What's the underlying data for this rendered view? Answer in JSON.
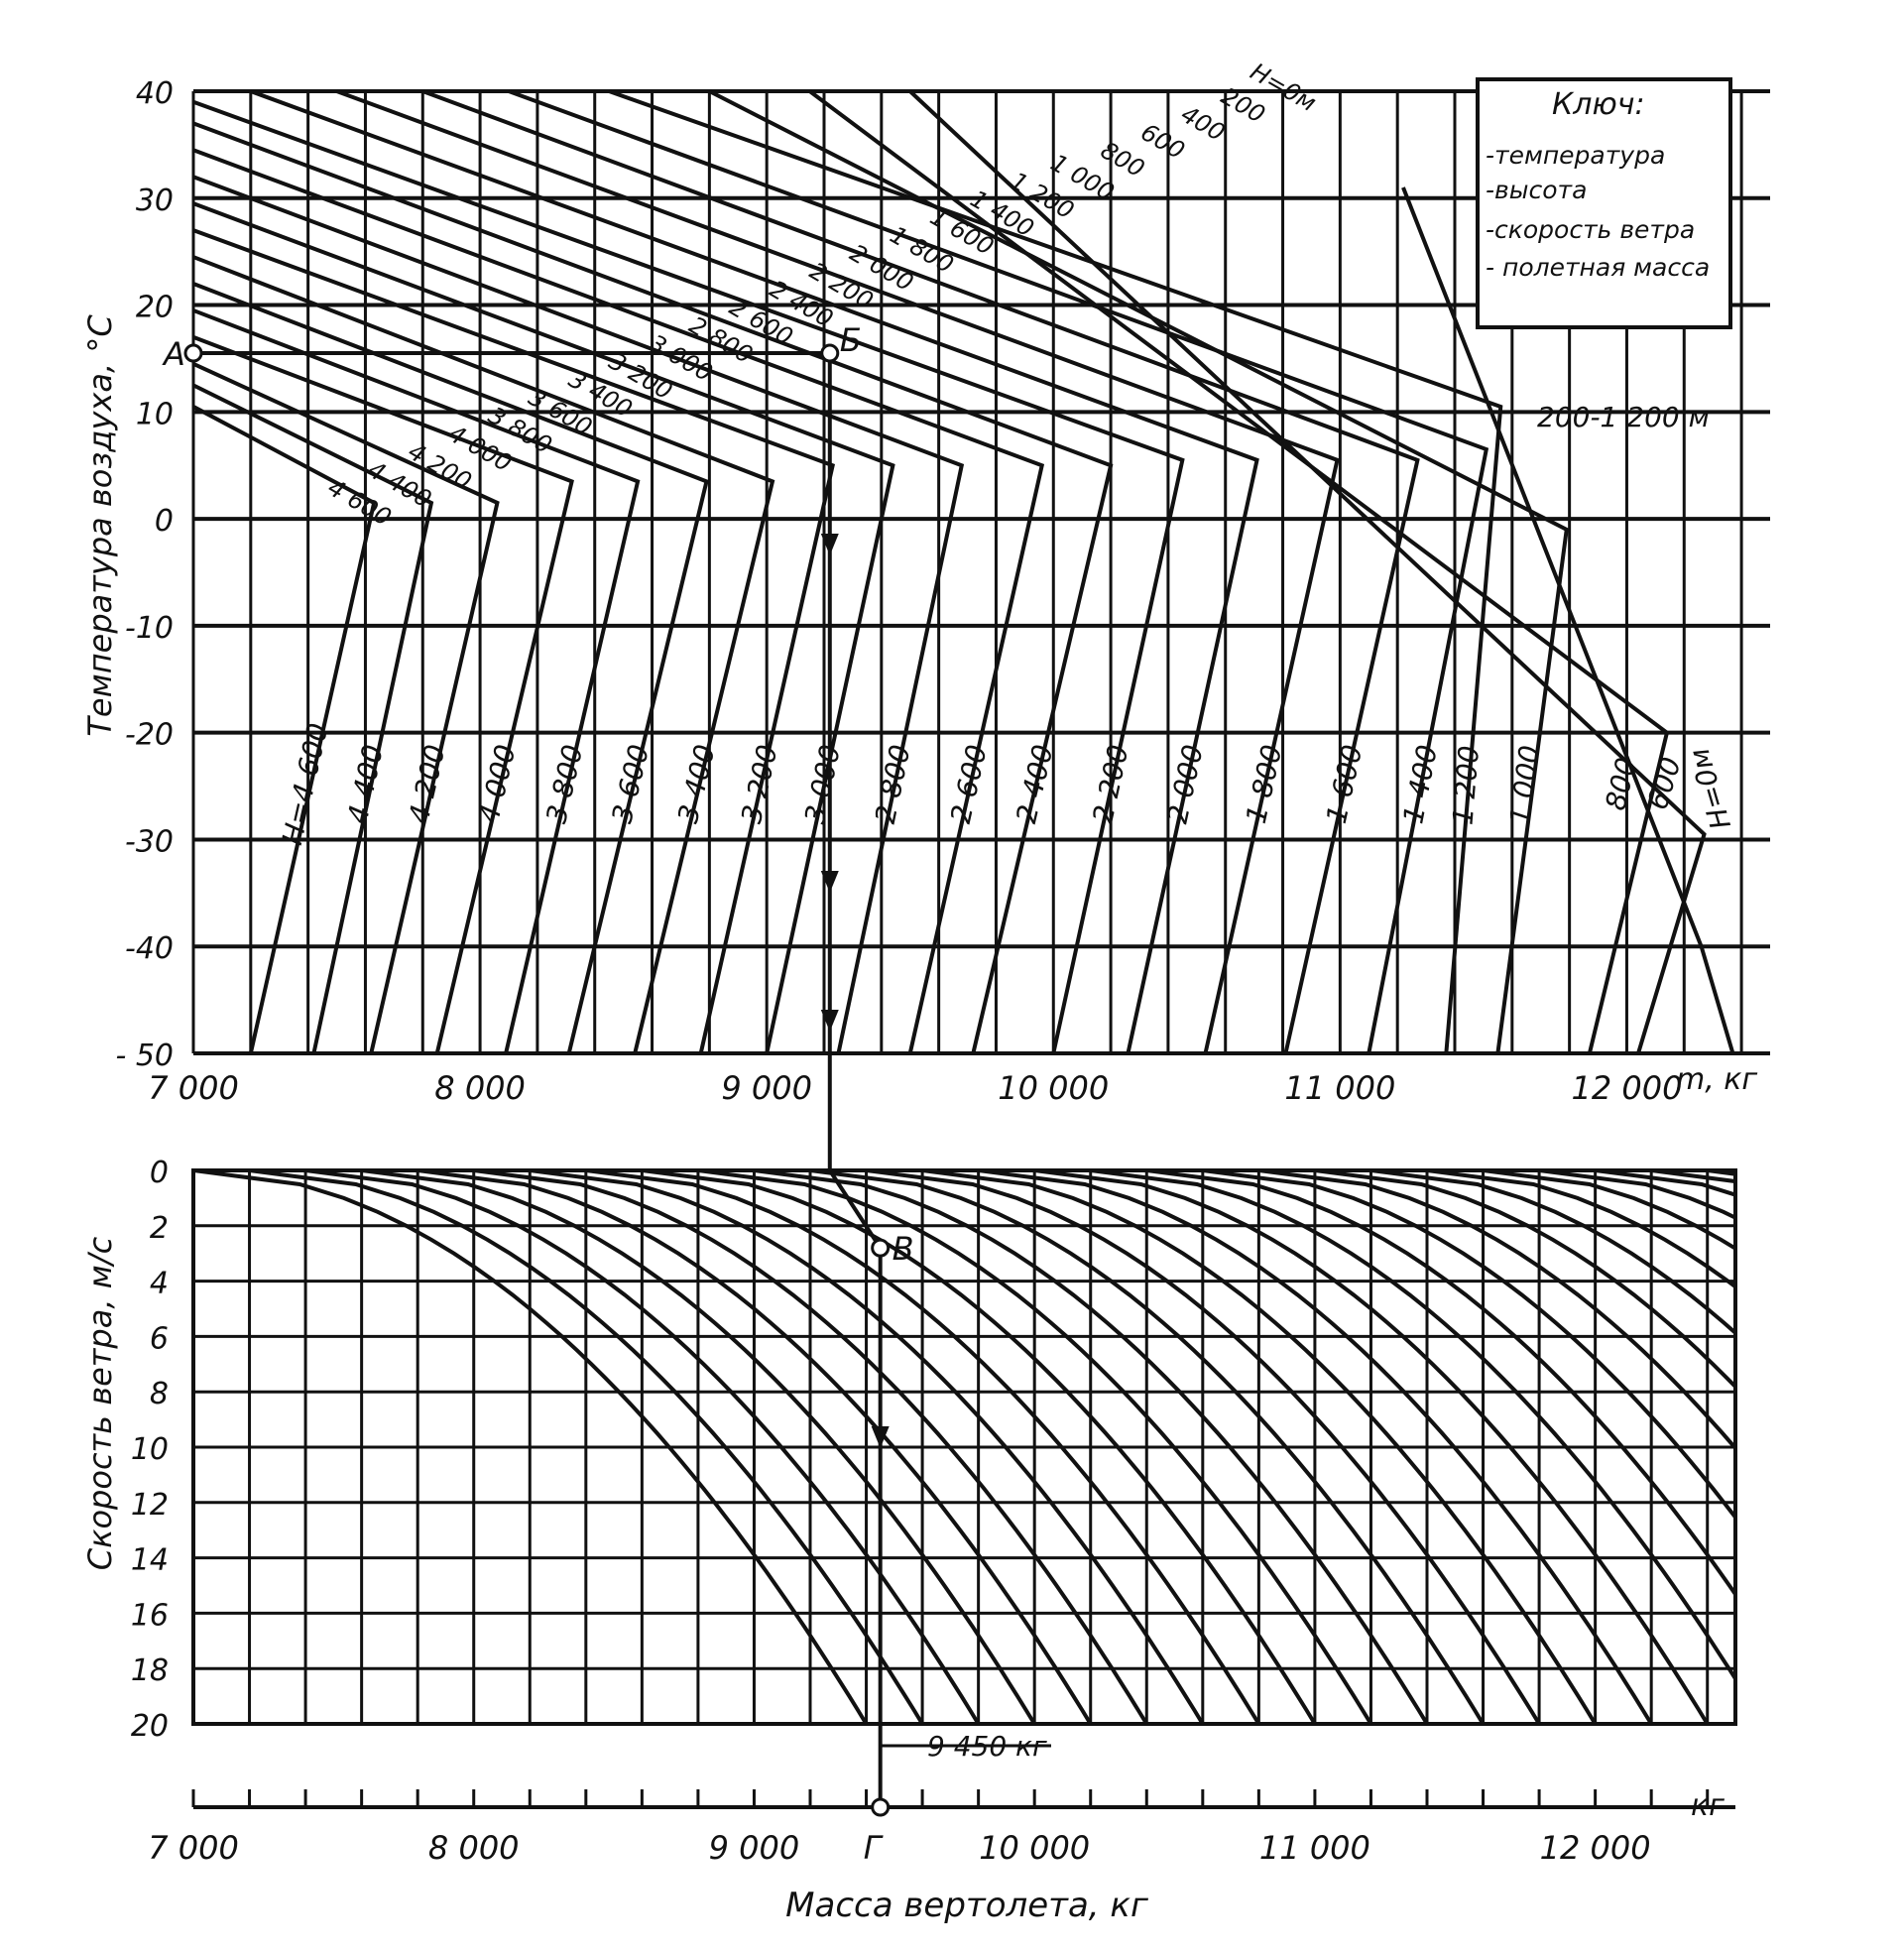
{
  "chart_data": [
    {
      "type": "line",
      "title": "",
      "xlabel": "",
      "ylabel": "Температура воздуха, °C",
      "x_unit_label": "m, кг",
      "xlim": [
        7000,
        12500
      ],
      "ylim": [
        -50,
        40
      ],
      "x_ticks": [
        7000,
        8000,
        9000,
        10000,
        11000,
        12000
      ],
      "x_tick_labels": [
        "7 000",
        "8 000",
        "9 000",
        "10 000",
        "11 000",
        "12 000"
      ],
      "y_ticks": [
        40,
        30,
        20,
        10,
        0,
        -10,
        -20,
        -30,
        -40,
        -50
      ],
      "y_tick_labels": [
        "40",
        "30",
        "20",
        "10",
        "0",
        "-10",
        "-20",
        "-30",
        "-40",
        "- 50"
      ],
      "grid": true,
      "legend": {
        "title": "Ключ:",
        "items": [
          "-температура",
          "-высота",
          "-скорость ветра",
          "- полетная масса"
        ],
        "position": "top-right"
      },
      "altitude_lines_bottom": [
        {
          "label": "H=4600",
          "x_at_minus50": 7200,
          "x_at_corner": 7630,
          "corner_temp": 1.5,
          "x_at_top": 7000,
          "top_temp": 10.5
        },
        {
          "label": "4 400",
          "x_at_minus50": 7420,
          "x_at_corner": 7830,
          "corner_temp": 1.5,
          "x_at_top": 7000,
          "top_temp": 12.5
        },
        {
          "label": "4 200",
          "x_at_minus50": 7620,
          "x_at_corner": 8060,
          "corner_temp": 1.5,
          "x_at_top": 7000,
          "top_temp": 14.5
        },
        {
          "label": "4 000",
          "x_at_minus50": 7850,
          "x_at_corner": 8320,
          "corner_temp": 3.5,
          "x_at_top": 7000,
          "top_temp": 17
        },
        {
          "label": "3 800",
          "x_at_minus50": 8090,
          "x_at_corner": 8550,
          "corner_temp": 3.5,
          "x_at_top": 7000,
          "top_temp": 19.5
        },
        {
          "label": "3 600",
          "x_at_minus50": 8310,
          "x_at_corner": 8790,
          "corner_temp": 3.5,
          "x_at_top": 7000,
          "top_temp": 22
        },
        {
          "label": "3 400",
          "x_at_minus50": 8540,
          "x_at_corner": 9020,
          "corner_temp": 3.5,
          "x_at_top": 7000,
          "top_temp": 24.5
        },
        {
          "label": "3 200",
          "x_at_minus50": 8770,
          "x_at_corner": 9230,
          "corner_temp": 5,
          "x_at_top": 7000,
          "top_temp": 27
        },
        {
          "label": "3 000",
          "x_at_minus50": 9000,
          "x_at_corner": 9440,
          "corner_temp": 5,
          "x_at_top": 7000,
          "top_temp": 29.5
        },
        {
          "label": "2 800",
          "x_at_minus50": 9250,
          "x_at_corner": 9680,
          "corner_temp": 5,
          "x_at_top": 7000,
          "top_temp": 32
        },
        {
          "label": "2 600",
          "x_at_minus50": 9500,
          "x_at_corner": 9960,
          "corner_temp": 5,
          "x_at_top": 7000,
          "top_temp": 34.5
        },
        {
          "label": "2 400",
          "x_at_minus50": 9720,
          "x_at_corner": 10200,
          "corner_temp": 5,
          "x_at_top": 7000,
          "top_temp": 37
        },
        {
          "label": "2 200",
          "x_at_minus50": 10000,
          "x_at_corner": 10450,
          "corner_temp": 5.5,
          "x_at_top": 7000,
          "top_temp": 39
        },
        {
          "label": "2 000",
          "x_at_minus50": 10260,
          "x_at_corner": 10710,
          "corner_temp": 5.5,
          "x_at_top": 7200,
          "top_temp": 40
        },
        {
          "label": "1 800",
          "x_at_minus50": 10530,
          "x_at_corner": 10990,
          "corner_temp": 5.5,
          "x_at_top": 7500,
          "top_temp": 40
        },
        {
          "label": "1 600",
          "x_at_minus50": 10810,
          "x_at_corner": 11270,
          "corner_temp": 5.5,
          "x_at_top": 7800,
          "top_temp": 40
        },
        {
          "label": "1 400",
          "x_at_minus50": 11100,
          "x_at_corner": 11510,
          "corner_temp": 6.5,
          "x_at_top": 8100,
          "top_temp": 40
        },
        {
          "label": "1 200",
          "x_at_minus50": 11370,
          "x_at_corner": 11560,
          "corner_temp": 10.5,
          "x_at_top": 8450,
          "top_temp": 40
        },
        {
          "label": "1 000",
          "x_at_minus50": 11550,
          "x_at_corner": 11790,
          "corner_temp": -1,
          "x_at_top": 8800,
          "top_temp": 40
        },
        {
          "label": "800",
          "x_at_minus50": 11870,
          "x_at_corner": 12140,
          "corner_temp": -20,
          "x_at_top": 9150,
          "top_temp": 40
        },
        {
          "label": "600",
          "x_at_minus50": 12040,
          "x_at_corner": 12270,
          "corner_temp": -29.5,
          "x_at_top": 9500,
          "top_temp": 40
        },
        {
          "label": "H=0м",
          "x_at_minus50": 12370,
          "x_at_corner": 12260,
          "corner_temp": -40,
          "x_at_top": 11220,
          "top_temp": 31
        }
      ],
      "altitude_labels_top": [
        "H=0м",
        "200",
        "400",
        "600",
        "800",
        "1 000",
        "1 200",
        "1 400",
        "1 600",
        "1 800",
        "2 000",
        "2 200",
        "2 400",
        "2 600",
        "2 800",
        "3 000",
        "3 200",
        "3 400",
        "3 600",
        "3 800",
        "4 000",
        "4 200",
        "4 400",
        "4 600"
      ],
      "bottom_altitude_labels": [
        "H=4 600",
        "4 400",
        "4 200",
        "4 000",
        "3 800",
        "3 600",
        "3 400",
        "3 200",
        "3 000",
        "2 800",
        "2 600",
        "2 400",
        "2 200",
        "2 000",
        "1 800",
        "1 600",
        "1 400",
        "1 200",
        "1 000",
        "800",
        "600",
        "H=0м"
      ],
      "band_label": "200-1 200 м",
      "annotations": [
        {
          "label": "А",
          "x": 7000,
          "y": 15.5
        },
        {
          "label": "Б",
          "x": 9220,
          "y": 15.5
        }
      ]
    },
    {
      "type": "line",
      "title": "",
      "xlabel": "Масса вертолета, кг",
      "ylabel": "Скорость ветра, м/с",
      "x_unit_label": "кг",
      "xlim": [
        7000,
        12500
      ],
      "ylim": [
        20,
        0
      ],
      "x_ticks": [
        7000,
        8000,
        9000,
        10000,
        11000,
        12000
      ],
      "x_tick_labels": [
        "7 000",
        "8 000",
        "9 000",
        "10 000",
        "11 000",
        "12 000"
      ],
      "y_ticks": [
        0,
        2,
        4,
        6,
        8,
        10,
        12,
        14,
        16,
        18,
        20
      ],
      "y_tick_labels": [
        "0",
        "2",
        "4",
        "6",
        "8",
        "10",
        "12",
        "14",
        "16",
        "18",
        "20"
      ],
      "grid": true,
      "wind_curve_start_masses": [
        7000,
        7200,
        7400,
        7600,
        7800,
        8000,
        8200,
        8400,
        8600,
        8800,
        9000,
        9200,
        9400,
        9600,
        9800,
        10000,
        10200,
        10400,
        10600,
        10800,
        11000,
        11200,
        11400,
        11600,
        11800,
        12000,
        12200,
        12400
      ],
      "wind_curve_mass_gain_at_20ms": 2400,
      "annotations": [
        {
          "label": "В",
          "x": 9450,
          "y": 2.8
        },
        {
          "label": "Г",
          "x": 9450,
          "y": 22
        }
      ],
      "result_label": "9 450 кг"
    }
  ]
}
